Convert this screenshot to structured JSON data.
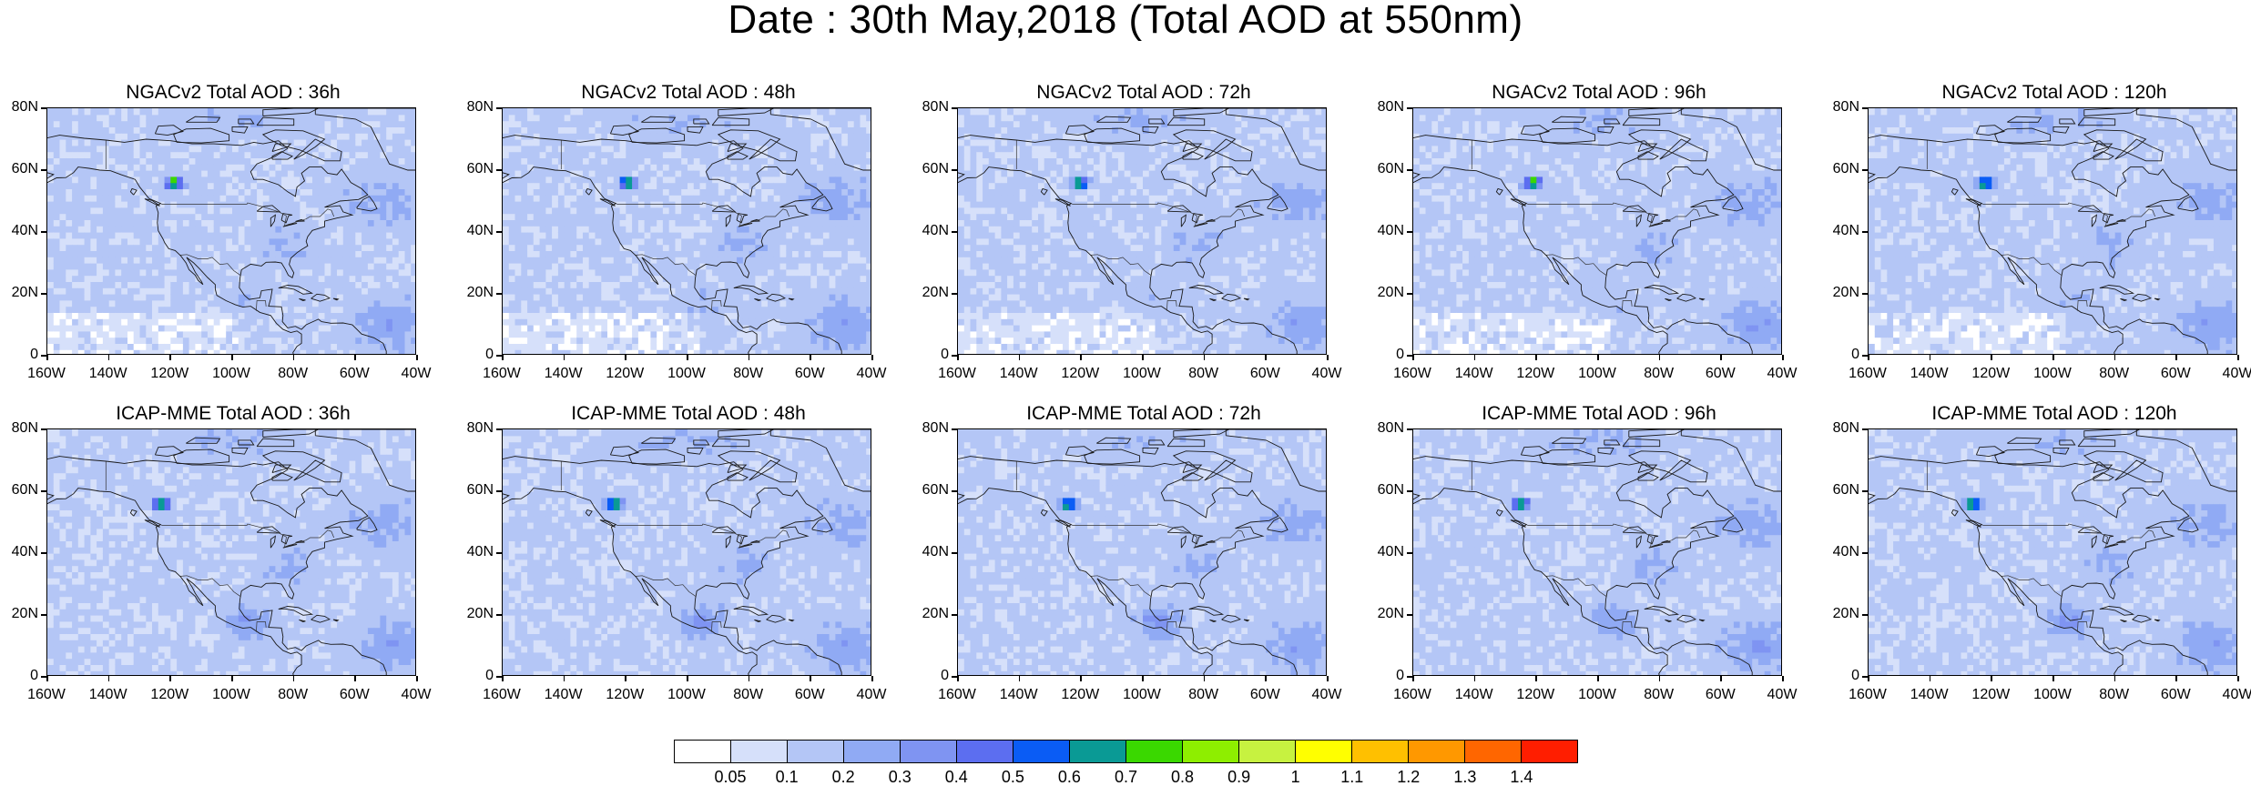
{
  "title": "Date : 30th May,2018 (Total AOD at 550nm)",
  "panels": [
    {
      "title": "NGACv2 Total AOD : 36h",
      "model": "NGACv2",
      "lead": "36h"
    },
    {
      "title": "NGACv2 Total AOD : 48h",
      "model": "NGACv2",
      "lead": "48h"
    },
    {
      "title": "NGACv2 Total AOD : 72h",
      "model": "NGACv2",
      "lead": "72h"
    },
    {
      "title": "NGACv2 Total AOD : 96h",
      "model": "NGACv2",
      "lead": "96h"
    },
    {
      "title": "NGACv2 Total AOD : 120h",
      "model": "NGACv2",
      "lead": "120h"
    },
    {
      "title": "ICAP-MME Total AOD : 36h",
      "model": "ICAP-MME",
      "lead": "36h"
    },
    {
      "title": "ICAP-MME Total AOD : 48h",
      "model": "ICAP-MME",
      "lead": "48h"
    },
    {
      "title": "ICAP-MME Total AOD : 72h",
      "model": "ICAP-MME",
      "lead": "72h"
    },
    {
      "title": "ICAP-MME Total AOD : 96h",
      "model": "ICAP-MME",
      "lead": "96h"
    },
    {
      "title": "ICAP-MME Total AOD : 120h",
      "model": "ICAP-MME",
      "lead": "120h"
    }
  ],
  "axes": {
    "lat_labels": [
      "80N",
      "60N",
      "40N",
      "20N",
      "0"
    ],
    "lon_labels": [
      "160W",
      "140W",
      "120W",
      "100W",
      "80W",
      "60W",
      "40W"
    ]
  },
  "colorbar": {
    "labels": [
      "0.05",
      "0.1",
      "0.2",
      "0.3",
      "0.4",
      "0.5",
      "0.6",
      "0.7",
      "0.8",
      "0.9",
      "1",
      "1.1",
      "1.2",
      "1.3",
      "1.4"
    ],
    "colors": [
      "#ffffff",
      "#d6e0fa",
      "#b4c6f6",
      "#90aaf4",
      "#7f94f2",
      "#5c6ef0",
      "#0a5cf5",
      "#0a9a95",
      "#3ad800",
      "#8eee00",
      "#c7f240",
      "#ffff00",
      "#ffc000",
      "#ff9800",
      "#ff6600",
      "#ff1e00"
    ]
  }
}
